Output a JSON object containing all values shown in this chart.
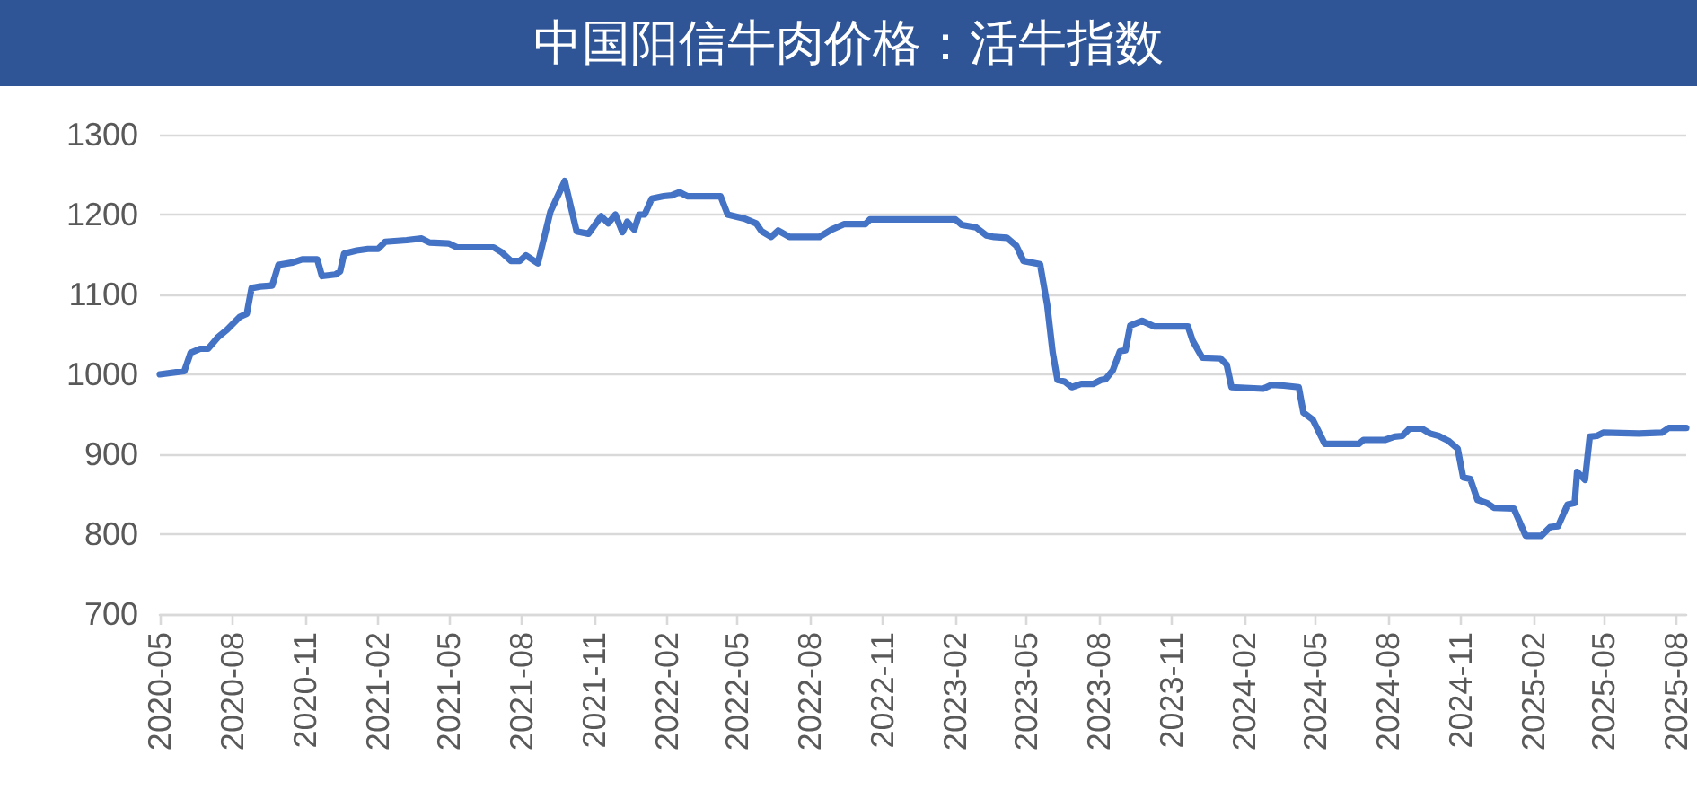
{
  "chart_data": {
    "type": "line",
    "title": "中国阳信牛肉价格：活牛指数",
    "x": [
      "2020-05-01",
      "2020-06-01",
      "2020-06-09",
      "2020-06-21",
      "2020-07-01",
      "2020-07-13",
      "2020-07-25",
      "2020-08-10",
      "2020-08-19",
      "2020-08-25",
      "2020-09-05",
      "2020-09-20",
      "2020-09-28",
      "2020-10-16",
      "2020-10-28",
      "2020-11-16",
      "2020-11-22",
      "2020-12-09",
      "2020-12-15",
      "2020-12-20",
      "2021-01-05",
      "2021-01-19",
      "2021-02-01",
      "2021-02-10",
      "2021-03-09",
      "2021-03-28",
      "2021-04-07",
      "2021-05-01",
      "2021-05-12",
      "2021-06-27",
      "2021-07-07",
      "2021-07-19",
      "2021-07-30",
      "2021-08-07",
      "2021-08-22",
      "2021-09-07",
      "2021-09-25",
      "2021-10-10",
      "2021-10-25",
      "2021-11-10",
      "2021-11-19",
      "2021-11-28",
      "2021-12-07",
      "2021-12-13",
      "2021-12-22",
      "2021-12-28",
      "2022-01-04",
      "2022-01-13",
      "2022-01-28",
      "2022-02-07",
      "2022-02-17",
      "2022-02-27",
      "2022-04-10",
      "2022-04-19",
      "2022-05-10",
      "2022-05-25",
      "2022-06-01",
      "2022-06-13",
      "2022-06-22",
      "2022-07-06",
      "2022-08-13",
      "2022-08-28",
      "2022-09-13",
      "2022-10-10",
      "2022-10-16",
      "2023-02-01",
      "2023-02-09",
      "2023-02-27",
      "2023-03-12",
      "2023-03-22",
      "2023-04-07",
      "2023-04-19",
      "2023-04-28",
      "2023-05-19",
      "2023-05-28",
      "2023-06-04",
      "2023-06-10",
      "2023-06-19",
      "2023-06-28",
      "2023-07-10",
      "2023-07-25",
      "2023-08-04",
      "2023-08-10",
      "2023-08-19",
      "2023-08-28",
      "2023-09-04",
      "2023-09-10",
      "2023-09-25",
      "2023-10-10",
      "2023-11-22",
      "2023-11-28",
      "2023-12-10",
      "2024-01-02",
      "2024-01-10",
      "2024-01-16",
      "2024-02-25",
      "2024-03-07",
      "2024-03-22",
      "2024-04-10",
      "2024-04-16",
      "2024-04-28",
      "2024-05-13",
      "2024-06-25",
      "2024-07-01",
      "2024-07-28",
      "2024-08-09",
      "2024-08-19",
      "2024-08-28",
      "2024-09-13",
      "2024-09-23",
      "2024-10-04",
      "2024-10-16",
      "2024-10-28",
      "2024-11-04",
      "2024-11-13",
      "2024-11-22",
      "2024-12-04",
      "2024-12-13",
      "2025-01-07",
      "2025-01-22",
      "2025-02-11",
      "2025-02-22",
      "2025-03-04",
      "2025-03-16",
      "2025-03-25",
      "2025-03-28",
      "2025-04-07",
      "2025-04-13",
      "2025-04-22",
      "2025-04-30",
      "2025-06-14",
      "2025-07-13",
      "2025-07-22",
      "2025-08-13"
    ],
    "series": [
      {
        "color": "#4472c4",
        "values": [
          1000,
          1004,
          1027,
          1032,
          1032,
          1046,
          1056,
          1072,
          1076,
          1108,
          1110,
          1111,
          1137,
          1140,
          1144,
          1144,
          1123,
          1125,
          1129,
          1151,
          1155,
          1157,
          1157,
          1166,
          1168,
          1170,
          1165,
          1164,
          1159,
          1159,
          1153,
          1142,
          1142,
          1149,
          1139,
          1204,
          1242,
          1179,
          1176,
          1198,
          1189,
          1200,
          1178,
          1191,
          1181,
          1200,
          1200,
          1220,
          1223,
          1224,
          1228,
          1223,
          1223,
          1200,
          1195,
          1189,
          1179,
          1172,
          1180,
          1172,
          1172,
          1181,
          1188,
          1188,
          1194,
          1194,
          1187,
          1184,
          1174,
          1172,
          1171,
          1161,
          1142,
          1138,
          1087,
          1027,
          993,
          991,
          984,
          988,
          988,
          993,
          994,
          1005,
          1029,
          1030,
          1061,
          1067,
          1060,
          1060,
          1042,
          1021,
          1020,
          1012,
          984,
          982,
          987,
          986,
          984,
          952,
          943,
          913,
          913,
          918,
          918,
          922,
          923,
          932,
          932,
          926,
          923,
          917,
          907,
          871,
          869,
          843,
          839,
          833,
          832,
          798,
          798,
          809,
          810,
          837,
          839,
          878,
          868,
          922,
          923,
          927,
          926,
          927,
          933,
          933
        ]
      }
    ],
    "xlim": [
      "2020-05-01",
      "2025-08-13"
    ],
    "xticks": [
      "2020-05",
      "2020-08",
      "2020-11",
      "2021-02",
      "2021-05",
      "2021-08",
      "2021-11",
      "2022-02",
      "2022-05",
      "2022-08",
      "2022-11",
      "2023-02",
      "2023-05",
      "2023-08",
      "2023-11",
      "2024-02",
      "2024-05",
      "2024-08",
      "2024-11",
      "2025-02",
      "2025-05",
      "2025-08"
    ],
    "ylim": [
      700,
      1300
    ],
    "yticks": [
      700,
      800,
      900,
      1000,
      1100,
      1200,
      1300
    ],
    "grid": "y",
    "marker": "none",
    "line_style": "solid"
  }
}
